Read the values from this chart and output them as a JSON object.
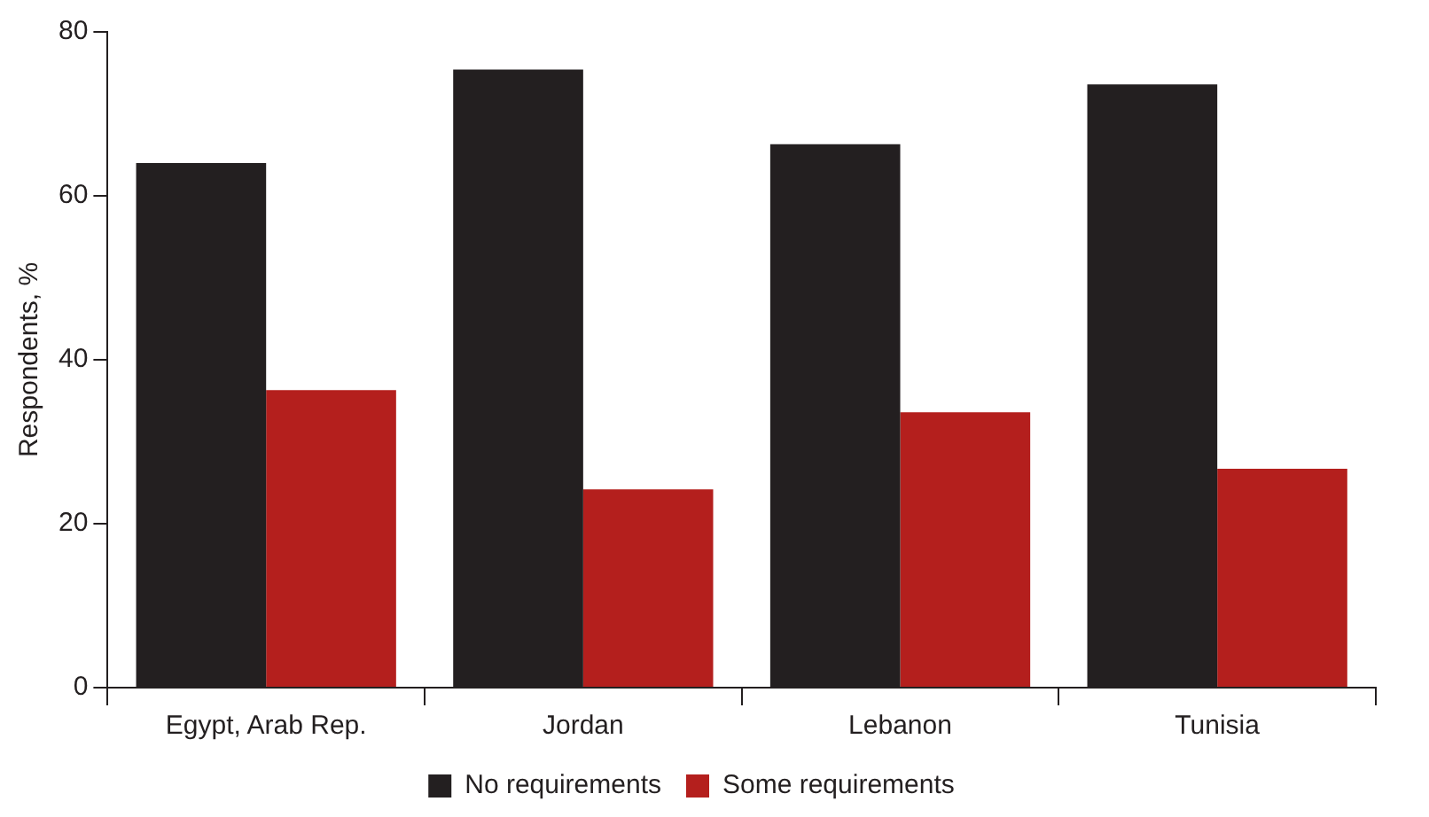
{
  "chart_data": {
    "type": "bar",
    "ylabel": "Respondents, %",
    "categories": [
      "Egypt, Arab Rep.",
      "Jordan",
      "Lebanon",
      "Tunisia"
    ],
    "series": [
      {
        "name": "No requirements",
        "color": "#231f20",
        "values": [
          64,
          75.4,
          66.3,
          73.6
        ]
      },
      {
        "name": "Some requirements",
        "color": "#b41f1d",
        "values": [
          36.3,
          24.2,
          33.6,
          26.7
        ]
      }
    ],
    "ylim": [
      0,
      80
    ],
    "yticks": [
      0,
      20,
      40,
      60,
      80
    ],
    "grid": false,
    "legend": "bottom"
  }
}
